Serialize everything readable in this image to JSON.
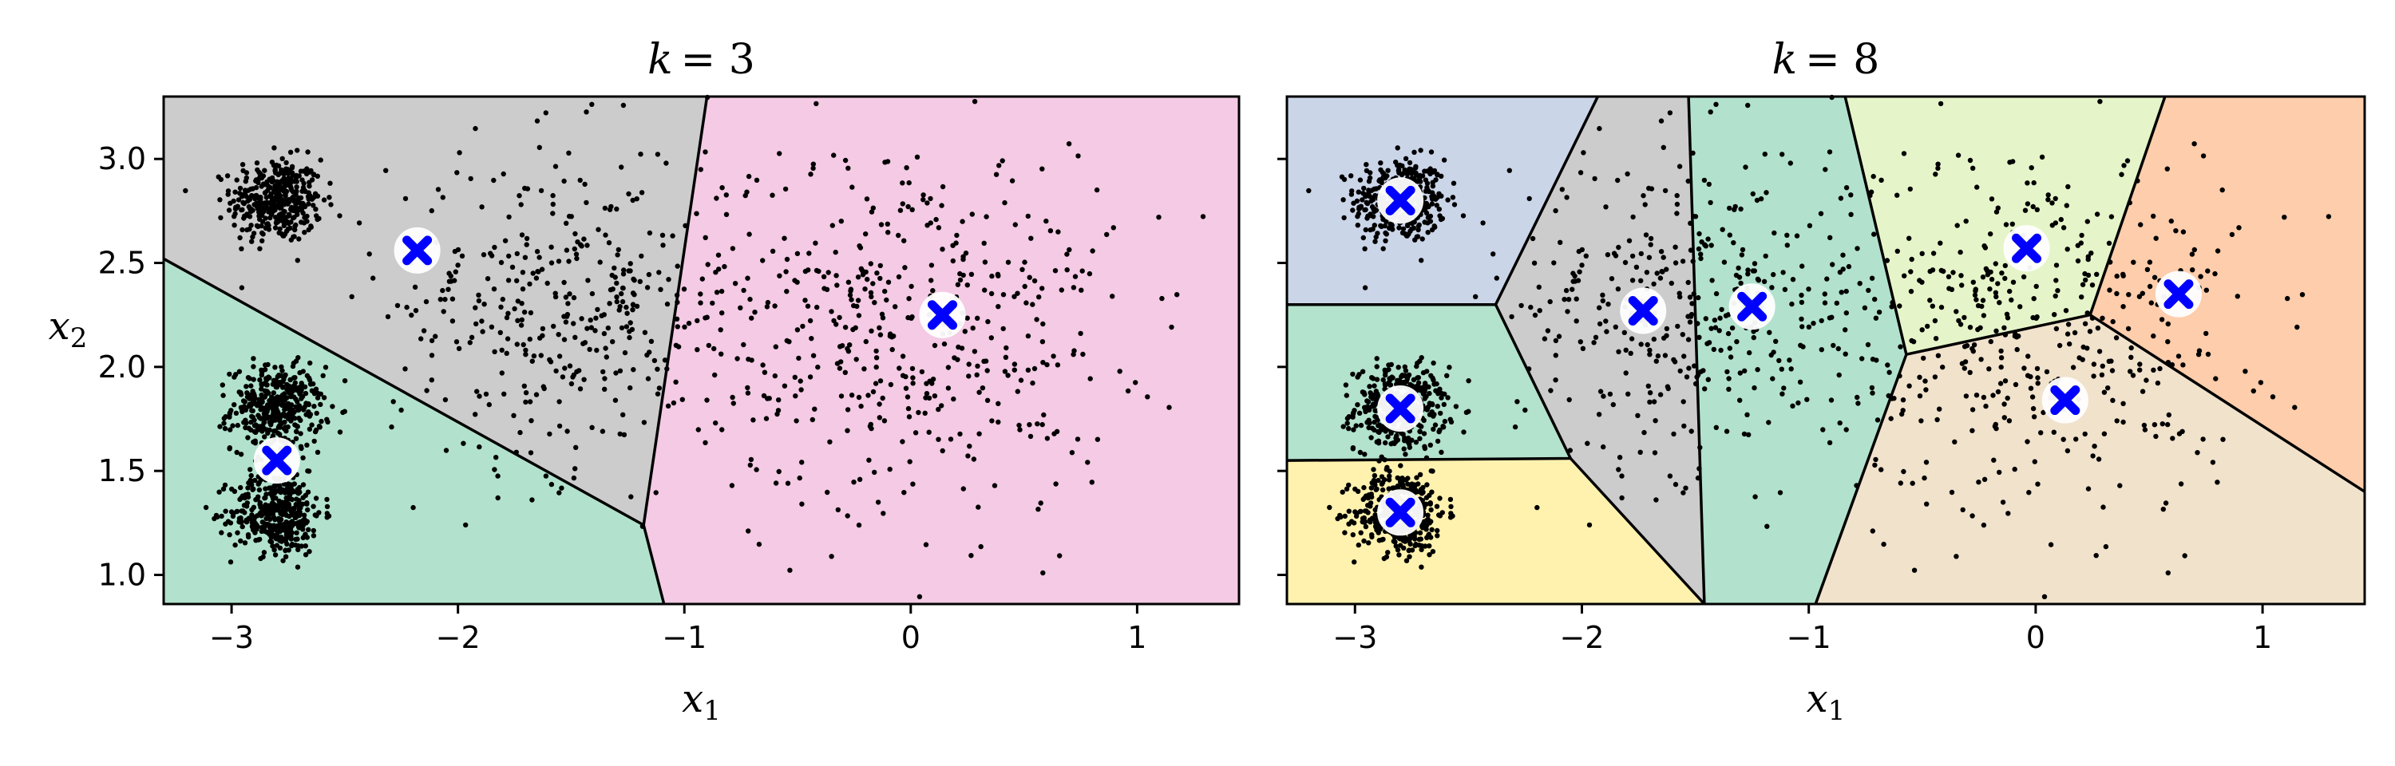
{
  "chart_data": [
    {
      "type": "scatter",
      "title": "k = 3",
      "title_parts": {
        "k": "k",
        "eq": "= 3"
      },
      "xlabel": "x1",
      "xlabel_parts": {
        "main": "x",
        "sub": "1"
      },
      "ylabel": "x2",
      "ylabel_parts": {
        "main": "x",
        "sub": "2"
      },
      "xlim": [
        -3.3,
        1.45
      ],
      "ylim": [
        0.86,
        3.3
      ],
      "xticks": [
        -3,
        -2,
        -1,
        0,
        1
      ],
      "xtick_labels": [
        "−3",
        "−2",
        "−1",
        "0",
        "1"
      ],
      "yticks": [
        1.0,
        1.5,
        2.0,
        2.5,
        3.0
      ],
      "ytick_labels": [
        "1.0",
        "1.5",
        "2.0",
        "2.5",
        "3.0"
      ],
      "show_yticklabels": true,
      "grid": false,
      "colors": {
        "gray": "#cccccc",
        "green": "#b2e2cd",
        "pink": "#f4cae4",
        "centroid": "#0000ff"
      },
      "regions": [
        {
          "color": "gray",
          "polygon": [
            [
              -3.3,
              3.3
            ],
            [
              -0.9,
              3.3
            ],
            [
              -1.18,
              1.24
            ],
            [
              -3.3,
              2.52
            ]
          ]
        },
        {
          "color": "green",
          "polygon": [
            [
              -3.3,
              2.52
            ],
            [
              -1.18,
              1.24
            ],
            [
              -1.09,
              0.86
            ],
            [
              -3.3,
              0.86
            ]
          ]
        },
        {
          "color": "pink",
          "polygon": [
            [
              -0.9,
              3.3
            ],
            [
              1.45,
              3.3
            ],
            [
              1.45,
              0.86
            ],
            [
              -1.09,
              0.86
            ],
            [
              -1.18,
              1.24
            ]
          ]
        }
      ],
      "boundaries": [
        [
          [
            -3.3,
            2.52
          ],
          [
            -1.18,
            1.24
          ]
        ],
        [
          [
            -0.9,
            3.3
          ],
          [
            -1.18,
            1.24
          ],
          [
            -1.09,
            0.86
          ]
        ]
      ],
      "centroids": [
        [
          -2.18,
          2.56
        ],
        [
          0.14,
          2.25
        ],
        [
          -2.8,
          1.55
        ]
      ],
      "clusters": [
        {
          "center": [
            -2.8,
            2.8
          ],
          "std": 0.1,
          "n": 400
        },
        {
          "center": [
            -2.8,
            1.8
          ],
          "std": 0.1,
          "n": 400
        },
        {
          "center": [
            -2.8,
            1.3
          ],
          "std": 0.1,
          "n": 400
        },
        {
          "center": [
            -1.5,
            2.3
          ],
          "std": 0.4,
          "n": 400
        },
        {
          "center": [
            0.0,
            2.2
          ],
          "std": 0.45,
          "n": 450
        }
      ]
    },
    {
      "type": "scatter",
      "title": "k = 8",
      "title_parts": {
        "k": "k",
        "eq": "= 8"
      },
      "xlabel": "x1",
      "xlabel_parts": {
        "main": "x",
        "sub": "1"
      },
      "ylabel": "",
      "xlim": [
        -3.3,
        1.45
      ],
      "ylim": [
        0.86,
        3.3
      ],
      "xticks": [
        -3,
        -2,
        -1,
        0,
        1
      ],
      "xtick_labels": [
        "−3",
        "−2",
        "−1",
        "0",
        "1"
      ],
      "yticks": [
        1.0,
        1.5,
        2.0,
        2.5,
        3.0
      ],
      "show_yticklabels": false,
      "grid": false,
      "colors": {
        "blue": "#cbd5e8",
        "green": "#b3e2cd",
        "yellow": "#fff2ae",
        "gray": "#cccccc",
        "teal": "#b2e2cd",
        "lime": "#e6f5c9",
        "orange": "#fdcdac",
        "beige": "#f1e2cc",
        "centroid": "#0000ff"
      },
      "regions": [
        {
          "color": "blue",
          "polygon": [
            [
              -3.3,
              3.3
            ],
            [
              -1.93,
              3.3
            ],
            [
              -2.38,
              2.3
            ],
            [
              -3.3,
              2.3
            ]
          ]
        },
        {
          "color": "green",
          "polygon": [
            [
              -3.3,
              2.3
            ],
            [
              -2.38,
              2.3
            ],
            [
              -2.05,
              1.56
            ],
            [
              -3.3,
              1.55
            ]
          ]
        },
        {
          "color": "yellow",
          "polygon": [
            [
              -3.3,
              1.55
            ],
            [
              -2.05,
              1.56
            ],
            [
              -1.46,
              0.86
            ],
            [
              -3.3,
              0.86
            ]
          ]
        },
        {
          "color": "gray",
          "polygon": [
            [
              -1.93,
              3.3
            ],
            [
              -1.53,
              3.3
            ],
            [
              -1.46,
              0.86
            ],
            [
              -2.05,
              1.56
            ],
            [
              -2.38,
              2.3
            ]
          ]
        },
        {
          "color": "teal",
          "polygon": [
            [
              -1.53,
              3.3
            ],
            [
              -0.84,
              3.3
            ],
            [
              -0.57,
              2.06
            ],
            [
              -0.97,
              0.86
            ],
            [
              -1.46,
              0.86
            ]
          ]
        },
        {
          "color": "lime",
          "polygon": [
            [
              -0.84,
              3.3
            ],
            [
              0.57,
              3.3
            ],
            [
              0.24,
              2.25
            ],
            [
              -0.57,
              2.06
            ]
          ]
        },
        {
          "color": "orange",
          "polygon": [
            [
              0.57,
              3.3
            ],
            [
              1.45,
              3.3
            ],
            [
              1.45,
              1.4
            ],
            [
              0.24,
              2.25
            ]
          ]
        },
        {
          "color": "beige",
          "polygon": [
            [
              -0.57,
              2.06
            ],
            [
              0.24,
              2.25
            ],
            [
              1.45,
              1.4
            ],
            [
              1.45,
              0.86
            ],
            [
              -0.97,
              0.86
            ]
          ]
        }
      ],
      "boundaries": [
        [
          [
            -3.3,
            2.3
          ],
          [
            -2.38,
            2.3
          ],
          [
            -1.93,
            3.3
          ]
        ],
        [
          [
            -2.38,
            2.3
          ],
          [
            -2.05,
            1.56
          ],
          [
            -3.3,
            1.55
          ]
        ],
        [
          [
            -2.05,
            1.56
          ],
          [
            -1.46,
            0.86
          ]
        ],
        [
          [
            -1.53,
            3.3
          ],
          [
            -1.46,
            0.86
          ]
        ],
        [
          [
            -0.84,
            3.3
          ],
          [
            -0.57,
            2.06
          ],
          [
            -0.97,
            0.86
          ]
        ],
        [
          [
            -0.57,
            2.06
          ],
          [
            0.24,
            2.25
          ],
          [
            0.57,
            3.3
          ]
        ],
        [
          [
            0.24,
            2.25
          ],
          [
            1.45,
            1.4
          ]
        ]
      ],
      "centroids": [
        [
          -2.8,
          2.8
        ],
        [
          -2.8,
          1.8
        ],
        [
          -2.8,
          1.3
        ],
        [
          -1.73,
          2.27
        ],
        [
          -1.25,
          2.29
        ],
        [
          -0.04,
          2.57
        ],
        [
          0.13,
          1.84
        ],
        [
          0.63,
          2.35
        ]
      ],
      "clusters": [
        {
          "center": [
            -2.8,
            2.8
          ],
          "std": 0.1,
          "n": 400
        },
        {
          "center": [
            -2.8,
            1.8
          ],
          "std": 0.1,
          "n": 400
        },
        {
          "center": [
            -2.8,
            1.3
          ],
          "std": 0.1,
          "n": 400
        },
        {
          "center": [
            -1.5,
            2.3
          ],
          "std": 0.4,
          "n": 400
        },
        {
          "center": [
            0.0,
            2.2
          ],
          "std": 0.45,
          "n": 450
        }
      ]
    }
  ]
}
